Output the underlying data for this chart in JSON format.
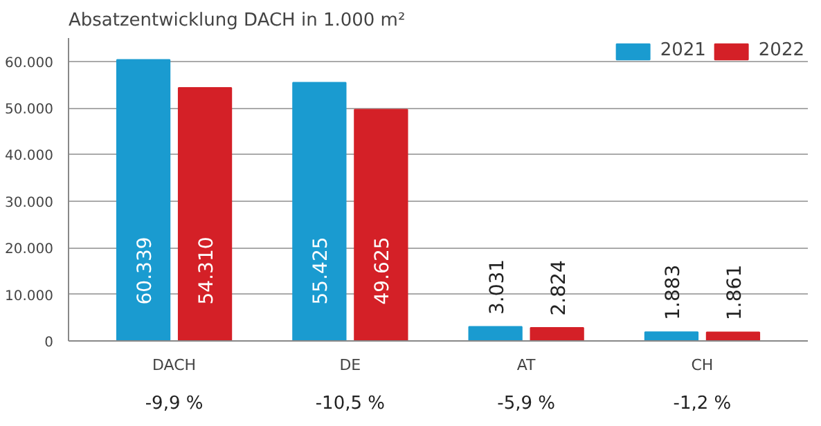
{
  "chart_data": {
    "type": "bar",
    "title": "Absatzentwicklung DACH in 1.000 m²",
    "categories": [
      "DACH",
      "DE",
      "AT",
      "CH"
    ],
    "series": [
      {
        "name": "2021",
        "color": "#1a9bd0",
        "values": [
          60339,
          55425,
          3031,
          1883
        ],
        "value_labels": [
          "60.339",
          "55.425",
          "3.031",
          "1.883"
        ]
      },
      {
        "name": "2022",
        "color": "#d42027",
        "values": [
          54310,
          49625,
          2824,
          1861
        ],
        "value_labels": [
          "54.310",
          "49.625",
          "2.824",
          "1.861"
        ]
      }
    ],
    "ylim": [
      0,
      65000
    ],
    "yticks": [
      0,
      {
        "value": 10000,
        "label": "10.000"
      },
      {
        "value": 20000,
        "label": "20.000"
      },
      {
        "value": 30000,
        "label": "30.000"
      },
      {
        "value": 40000,
        "label": "40.000"
      },
      {
        "value": 50000,
        "label": "50.000"
      },
      {
        "value": 60000,
        "label": "60.000"
      }
    ],
    "grid": "y",
    "legend": "top right",
    "annotations": [
      "-9,9 %",
      "-10,5 %",
      "-5,9 %",
      "-1,2 %"
    ]
  }
}
